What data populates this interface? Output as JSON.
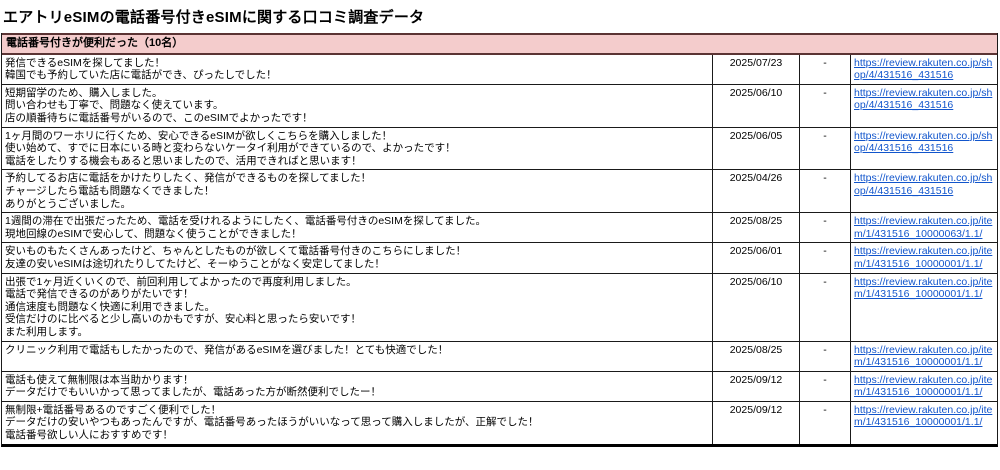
{
  "title": "エアトリeSIMの電話番号付きeSIMに関する口コミ調査データ",
  "colors": {
    "header_bg": "#f4cccc",
    "header_border": "#5b3434",
    "link": "#1155cc",
    "grid": "#1a1a1a"
  },
  "table": {
    "header": "電話番号付きが便利だった（10名）",
    "rows": [
      {
        "review": "発信できるeSIMを探してました！\n韓国でも予約していた店に電話ができ、ぴったしでした！",
        "date": "2025/07/23",
        "rating": "-",
        "url": "https://review.rakuten.co.jp/shop/4/431516_431516"
      },
      {
        "review": "短期留学のため、購入しました。\n問い合わせも丁寧で、問題なく使えています。\n店の順番待ちに電話番号がいるので、このeSIMでよかったです！",
        "date": "2025/06/10",
        "rating": "-",
        "url": "https://review.rakuten.co.jp/shop/4/431516_431516"
      },
      {
        "review": "1ヶ月間のワーホリに行くため、安心できるeSIMが欲しくこちらを購入しました！\n使い始めて、すでに日本にいる時と変わらないケータイ利用ができているので、よかったです！\n電話をしたりする機会もあると思いましたので、活用できればと思います！",
        "date": "2025/06/05",
        "rating": "-",
        "url": "https://review.rakuten.co.jp/shop/4/431516_431516"
      },
      {
        "review": "予約してるお店に電話をかけたりしたく、発信ができるものを探してました！\nチャージしたら電話も問題なくできました！\nありがとうございました。",
        "date": "2025/04/26",
        "rating": "-",
        "url": "https://review.rakuten.co.jp/shop/4/431516_431516"
      },
      {
        "review": "1週間の滞在で出張だったため、電話を受けれるようにしたく、電話番号付きのeSIMを探してました。\n現地回線のeSIMで安心して、問題なく使うことができました！",
        "date": "2025/08/25",
        "rating": "-",
        "url": "https://review.rakuten.co.jp/item/1/431516_10000063/1.1/"
      },
      {
        "review": "安いものもたくさんあったけど、ちゃんとしたものが欲しくて電話番号付きのこちらにしました！\n友達の安いeSIMは途切れたりしてたけど、そーゆうことがなく安定してました！",
        "date": "2025/06/01",
        "rating": "-",
        "url": "https://review.rakuten.co.jp/item/1/431516_10000001/1.1/"
      },
      {
        "review": "出張で1ヶ月近くいくので、前回利用してよかったので再度利用しました。\n電話で発信できるのがありがたいです！\n通信速度も問題なく快適に利用できました。\n受信だけのに比べると少し高いのかもですが、安心料と思ったら安いです！\nまた利用します。",
        "date": "2025/06/10",
        "rating": "-",
        "url": "https://review.rakuten.co.jp/item/1/431516_10000001/1.1/"
      },
      {
        "review": "クリニック利用で電話もしたかったので、発信があるeSIMを選びました！とても快適でした！",
        "date": "2025/08/25",
        "rating": "-",
        "url": "https://review.rakuten.co.jp/item/1/431516_10000001/1.1/"
      },
      {
        "review": "電話も使えて無制限は本当助かります！\nデータだけでもいいかって思ってましたが、電話あった方が断然便利でしたー！",
        "date": "2025/09/12",
        "rating": "-",
        "url": "https://review.rakuten.co.jp/item/1/431516_10000001/1.1/"
      },
      {
        "review": "無制限+電話番号あるのですごく便利でした！\nデータだけの安いやつもあったんですが、電話番号あったほうがいいなって思って購入しましたが、正解でした！\n電話番号欲しい人におすすめです！",
        "date": "2025/09/12",
        "rating": "-",
        "url": "https://review.rakuten.co.jp/item/1/431516_10000001/1.1/"
      }
    ]
  }
}
